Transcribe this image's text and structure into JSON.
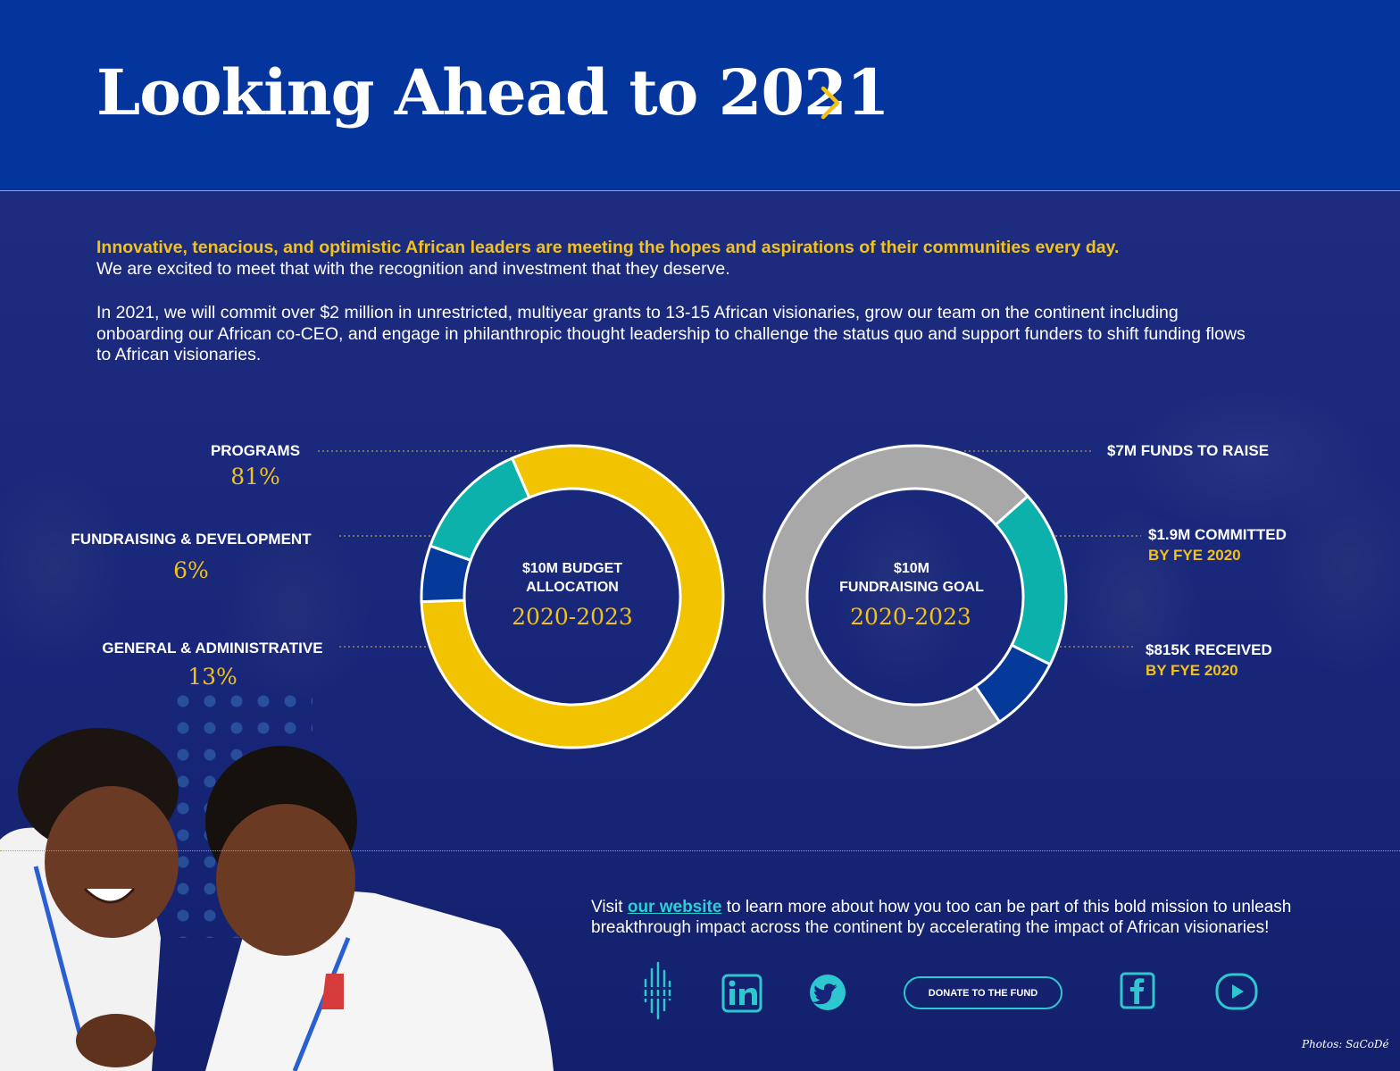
{
  "header": {
    "title": "Looking Ahead to 2021"
  },
  "intro": {
    "lead": "Innovative, tenacious, and optimistic African leaders are meeting the hopes and aspirations of their communities every day.",
    "sub": "We are excited to meet that with the recognition and investment that they deserve.",
    "paragraph": "In 2021, we will commit over $2 million in unrestricted, multiyear grants to 13-15 African visionaries, grow our team on the continent including onboarding our African co-CEO, and engage in philanthropic thought leadership to challenge the status quo and support funders to shift funding flows to African visionaries."
  },
  "budget_chart": {
    "center_line1": "$10M BUDGET",
    "center_line2": "ALLOCATION",
    "years": "2020-2023",
    "labels": [
      {
        "name": "PROGRAMS",
        "pct": "81%"
      },
      {
        "name": "FUNDRAISING & DEVELOPMENT",
        "pct": "6%"
      },
      {
        "name": "GENERAL & ADMINISTRATIVE",
        "pct": "13%"
      }
    ]
  },
  "fundraising_chart": {
    "center_line1": "$10M",
    "center_line2": "FUNDRAISING GOAL",
    "years": "2020-2023",
    "labels": [
      {
        "main": "$7M FUNDS TO RAISE",
        "sub": ""
      },
      {
        "main": "$1.9M COMMITTED",
        "sub": "BY FYE 2020"
      },
      {
        "main": "$815K RECEIVED",
        "sub": "BY FYE 2020"
      }
    ]
  },
  "chart_data": [
    {
      "type": "pie",
      "title": "$10M BUDGET ALLOCATION 2020-2023",
      "categories": [
        "PROGRAMS",
        "FUNDRAISING & DEVELOPMENT",
        "GENERAL & ADMINISTRATIVE"
      ],
      "values": [
        81,
        6,
        13
      ],
      "colors": [
        "#f2c300",
        "#063a9a",
        "#0cb1ab"
      ],
      "donut": true
    },
    {
      "type": "pie",
      "title": "$10M FUNDRAISING GOAL 2020-2023",
      "categories": [
        "$7M FUNDS TO RAISE",
        "$1.9M COMMITTED BY FYE 2020",
        "$815K RECEIVED BY FYE 2020"
      ],
      "values": [
        7.285,
        1.9,
        0.815
      ],
      "colors": [
        "#a8a8a8",
        "#0cb1ab",
        "#063a9a"
      ],
      "donut": true
    }
  ],
  "footer": {
    "text_before": "Visit ",
    "link_label": "our website",
    "text_after": " to learn more about how you too can be part of this bold mission to unleash breakthrough impact across the continent by accelerating the impact of African visionaries!",
    "donate_label": "DONATE TO THE FUND",
    "credit": "Photos: SaCoDé",
    "icons": [
      "fund-logo-icon",
      "linkedin-icon",
      "twitter-icon",
      "facebook-icon",
      "youtube-icon"
    ]
  },
  "colors": {
    "header_bg": "#04359c",
    "accent_yellow": "#f2c21b",
    "accent_teal": "#2fc7cf"
  }
}
